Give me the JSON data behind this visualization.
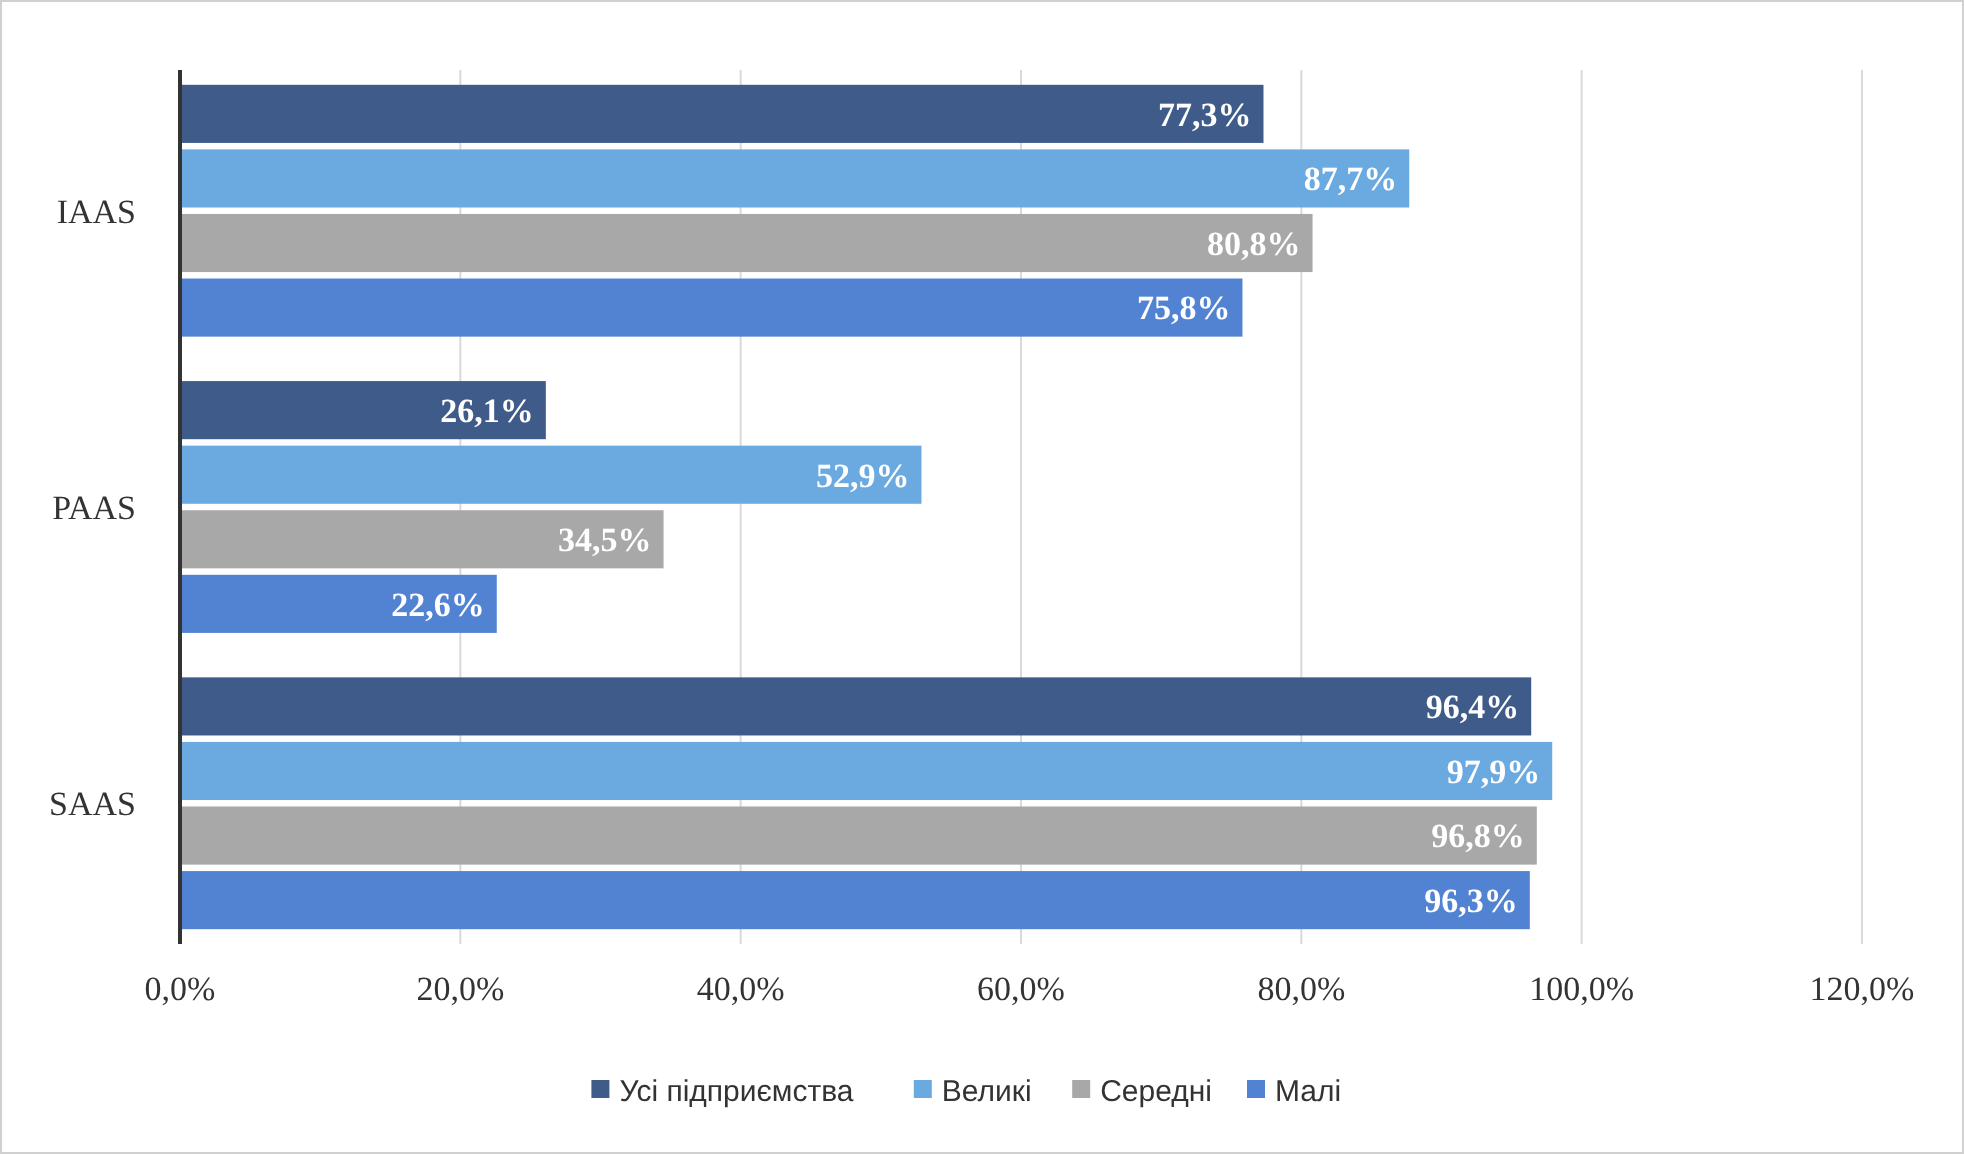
{
  "chart_data": {
    "type": "bar",
    "orientation": "horizontal",
    "categories": [
      "IAAS",
      "PAAS",
      "SAAS"
    ],
    "series": [
      {
        "name": "Усі підприємства",
        "color": "#3f5b8a",
        "values": [
          77.3,
          26.1,
          96.4
        ],
        "value_labels": [
          "77,3%",
          "26,1%",
          "96,4%"
        ]
      },
      {
        "name": "Великі",
        "color": "#6baae0",
        "values": [
          87.7,
          52.9,
          97.9
        ],
        "value_labels": [
          "87,7%",
          "52,9%",
          "97,9%"
        ]
      },
      {
        "name": "Середні",
        "color": "#a8a8a8",
        "values": [
          80.8,
          34.5,
          96.8
        ],
        "value_labels": [
          "80,8%",
          "34,5%",
          "96,8%"
        ]
      },
      {
        "name": "Малі",
        "color": "#5283d2",
        "values": [
          75.8,
          22.6,
          96.3
        ],
        "value_labels": [
          "75,8%",
          "22,6%",
          "96,3%"
        ]
      }
    ],
    "xlim": [
      0,
      120
    ],
    "xticks": [
      {
        "value": 0,
        "label": "0,0%"
      },
      {
        "value": 20,
        "label": "20,0%"
      },
      {
        "value": 40,
        "label": "40,0%"
      },
      {
        "value": 60,
        "label": "60,0%"
      },
      {
        "value": 80,
        "label": "80,0%"
      },
      {
        "value": 100,
        "label": "100,0%"
      },
      {
        "value": 120,
        "label": "120,0%"
      }
    ],
    "grid": "x",
    "legend": "bottom"
  }
}
